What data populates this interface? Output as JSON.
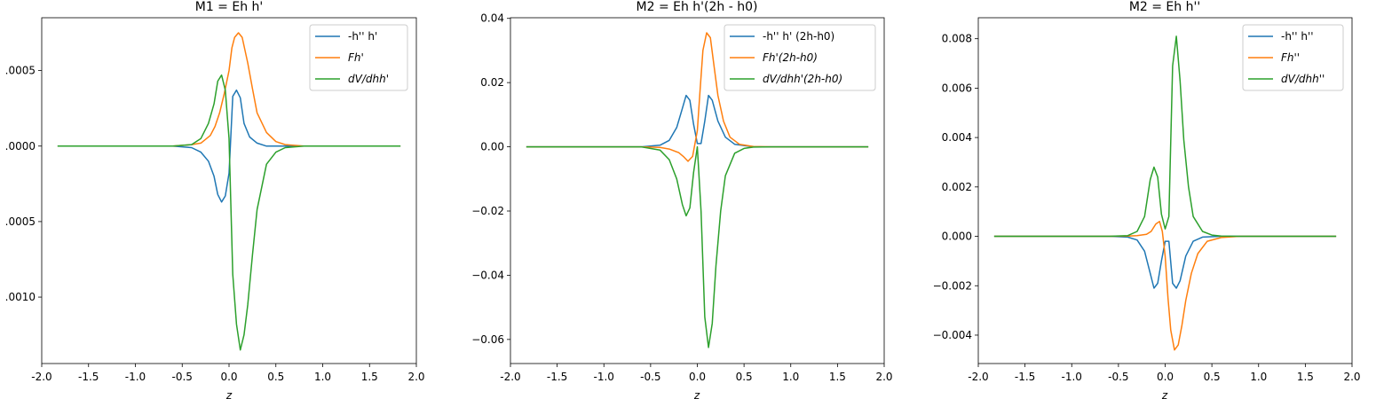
{
  "colors": {
    "blue": "#1f77b4",
    "orange": "#ff7f0e",
    "green": "#2ca02c"
  },
  "chart_data": [
    {
      "type": "line",
      "title": "M1 = Eh h'",
      "xlabel": "z",
      "ylabel": "",
      "xlim": [
        -2.0,
        2.0
      ],
      "ylim": [
        -0.00144,
        0.00085
      ],
      "xticks": [
        "-2.0",
        "-1.5",
        "-1.0",
        "-0.5",
        "0.0",
        "0.5",
        "1.0",
        "1.5",
        "2.0"
      ],
      "yticks": [
        {
          "value": 0.0005,
          "label": ".0005"
        },
        {
          "value": 0.0,
          "label": ".0000"
        },
        {
          "value": -0.0005,
          "label": ".0005"
        },
        {
          "value": -0.001,
          "label": ".0010"
        }
      ],
      "grid": false,
      "legend_position": "upper right",
      "series": [
        {
          "name": "-h'' h'",
          "color": "blue",
          "x": [
            -1.83,
            -0.6,
            -0.4,
            -0.3,
            -0.22,
            -0.16,
            -0.12,
            -0.08,
            -0.04,
            0.0,
            0.04,
            0.08,
            0.12,
            0.16,
            0.22,
            0.3,
            0.4,
            0.6,
            1.83
          ],
          "y": [
            0.0,
            0.0,
            -1e-05,
            -4e-05,
            -0.0001,
            -0.0002,
            -0.00032,
            -0.00037,
            -0.00033,
            -0.00018,
            0.00033,
            0.00037,
            0.00032,
            0.00015,
            6e-05,
            2e-05,
            0.0,
            0.0,
            0.0
          ]
        },
        {
          "name": "Fh'",
          "color": "orange",
          "x": [
            -1.83,
            -0.6,
            -0.4,
            -0.3,
            -0.2,
            -0.15,
            -0.1,
            -0.05,
            0.0,
            0.03,
            0.06,
            0.1,
            0.14,
            0.2,
            0.25,
            0.3,
            0.4,
            0.5,
            0.6,
            0.8,
            1.83
          ],
          "y": [
            0.0,
            0.0,
            1e-05,
            2e-05,
            7e-05,
            0.00013,
            0.00022,
            0.00035,
            0.0005,
            0.00065,
            0.00072,
            0.00075,
            0.00072,
            0.00055,
            0.00038,
            0.00022,
            9e-05,
            3e-05,
            1e-05,
            0.0,
            0.0
          ]
        },
        {
          "name": "dV/dhh'",
          "color": "green",
          "x": [
            -1.83,
            -0.6,
            -0.4,
            -0.3,
            -0.22,
            -0.16,
            -0.12,
            -0.08,
            -0.04,
            0.0,
            0.04,
            0.08,
            0.12,
            0.16,
            0.2,
            0.25,
            0.3,
            0.4,
            0.5,
            0.6,
            0.8,
            1.83
          ],
          "y": [
            0.0,
            0.0,
            1e-05,
            5e-05,
            0.00015,
            0.00028,
            0.00043,
            0.00047,
            0.00037,
            5e-05,
            -0.00085,
            -0.00118,
            -0.00135,
            -0.00125,
            -0.00105,
            -0.00072,
            -0.00042,
            -0.00012,
            -4e-05,
            -1e-05,
            0.0,
            0.0
          ]
        }
      ]
    },
    {
      "type": "line",
      "title": "M2 = Eh h'(2h - h0)",
      "xlabel": "z",
      "ylabel": "",
      "xlim": [
        -2.0,
        2.0
      ],
      "ylim": [
        -0.0675,
        0.0402
      ],
      "xticks": [
        "-2.0",
        "-1.5",
        "-1.0",
        "-0.5",
        "0.0",
        "0.5",
        "1.0",
        "1.5",
        "2.0"
      ],
      "yticks": [
        {
          "value": 0.04,
          "label": "0.04"
        },
        {
          "value": 0.02,
          "label": "0.02"
        },
        {
          "value": 0.0,
          "label": "0.00"
        },
        {
          "value": -0.02,
          "label": "−0.02"
        },
        {
          "value": -0.04,
          "label": "−0.04"
        },
        {
          "value": -0.06,
          "label": "−0.06"
        }
      ],
      "grid": false,
      "legend_position": "upper right",
      "series": [
        {
          "name": "-h'' h' (2h-h0)",
          "color": "blue",
          "x": [
            -1.83,
            -0.6,
            -0.4,
            -0.3,
            -0.22,
            -0.16,
            -0.12,
            -0.08,
            -0.04,
            0.0,
            0.04,
            0.08,
            0.12,
            0.16,
            0.22,
            0.3,
            0.4,
            0.6,
            1.83
          ],
          "y": [
            0.0,
            0.0,
            0.0005,
            0.002,
            0.006,
            0.012,
            0.016,
            0.0145,
            0.007,
            0.001,
            0.001,
            0.008,
            0.016,
            0.0145,
            0.008,
            0.003,
            0.0008,
            0.0,
            0.0
          ]
        },
        {
          "name": "Fh'(2h-h0)",
          "color": "orange",
          "x": [
            -1.83,
            -0.6,
            -0.4,
            -0.3,
            -0.2,
            -0.15,
            -0.1,
            -0.05,
            0.0,
            0.03,
            0.06,
            0.1,
            0.14,
            0.18,
            0.22,
            0.28,
            0.35,
            0.45,
            0.6,
            0.8,
            1.83
          ],
          "y": [
            0.0,
            0.0,
            -0.0002,
            -0.0007,
            -0.0018,
            -0.003,
            -0.0045,
            -0.003,
            0.005,
            0.018,
            0.03,
            0.0355,
            0.034,
            0.025,
            0.016,
            0.008,
            0.003,
            0.0008,
            0.0001,
            0.0,
            0.0
          ]
        },
        {
          "name": "dV/dhh'(2h-h0)",
          "color": "green",
          "x": [
            -1.83,
            -0.6,
            -0.4,
            -0.3,
            -0.22,
            -0.16,
            -0.12,
            -0.08,
            -0.04,
            0.0,
            0.04,
            0.08,
            0.12,
            0.16,
            0.2,
            0.25,
            0.3,
            0.4,
            0.5,
            0.6,
            0.8,
            1.83
          ],
          "y": [
            0.0,
            0.0,
            -0.001,
            -0.004,
            -0.01,
            -0.018,
            -0.0215,
            -0.019,
            -0.008,
            0.0,
            -0.02,
            -0.053,
            -0.0625,
            -0.055,
            -0.037,
            -0.02,
            -0.009,
            -0.002,
            -0.0005,
            -0.0001,
            0.0,
            0.0
          ]
        }
      ]
    },
    {
      "type": "line",
      "title": "M2 = Eh h''",
      "xlabel": "z",
      "ylabel": "",
      "xlim": [
        -2.0,
        2.0
      ],
      "ylim": [
        -0.00515,
        0.00885
      ],
      "xticks": [
        "-2.0",
        "-1.5",
        "-1.0",
        "-0.5",
        "0.0",
        "0.5",
        "1.0",
        "1.5",
        "2.0"
      ],
      "yticks": [
        {
          "value": 0.008,
          "label": "0.008"
        },
        {
          "value": 0.006,
          "label": "0.006"
        },
        {
          "value": 0.004,
          "label": "0.004"
        },
        {
          "value": 0.002,
          "label": "0.002"
        },
        {
          "value": 0.0,
          "label": "0.000"
        },
        {
          "value": -0.002,
          "label": "−0.002"
        },
        {
          "value": -0.004,
          "label": "−0.004"
        }
      ],
      "grid": false,
      "legend_position": "upper right",
      "series": [
        {
          "name": "-h'' h''",
          "color": "blue",
          "x": [
            -1.83,
            -0.6,
            -0.4,
            -0.3,
            -0.22,
            -0.16,
            -0.12,
            -0.08,
            -0.04,
            0.0,
            0.04,
            0.08,
            0.12,
            0.16,
            0.22,
            0.3,
            0.4,
            0.6,
            1.83
          ],
          "y": [
            0.0,
            0.0,
            -3e-05,
            -0.00015,
            -0.0006,
            -0.0015,
            -0.0021,
            -0.0019,
            -0.001,
            -0.0002,
            -0.0002,
            -0.0019,
            -0.0021,
            -0.0018,
            -0.0008,
            -0.0002,
            -3e-05,
            0.0,
            0.0
          ]
        },
        {
          "name": "Fh''",
          "color": "orange",
          "x": [
            -1.83,
            -0.6,
            -0.4,
            -0.3,
            -0.2,
            -0.15,
            -0.1,
            -0.06,
            -0.03,
            0.0,
            0.03,
            0.06,
            0.1,
            0.14,
            0.18,
            0.22,
            0.28,
            0.35,
            0.45,
            0.6,
            0.8,
            1.83
          ],
          "y": [
            0.0,
            0.0,
            1e-05,
            3e-05,
            8e-05,
            0.0002,
            0.0005,
            0.0006,
            0.0002,
            -0.0008,
            -0.0025,
            -0.0038,
            -0.0046,
            -0.0044,
            -0.0036,
            -0.0026,
            -0.0015,
            -0.0007,
            -0.0002,
            -5e-05,
            0.0,
            0.0
          ]
        },
        {
          "name": "dV/dhh''",
          "color": "green",
          "x": [
            -1.83,
            -0.6,
            -0.4,
            -0.3,
            -0.22,
            -0.16,
            -0.12,
            -0.08,
            -0.04,
            0.0,
            0.04,
            0.08,
            0.12,
            0.16,
            0.2,
            0.25,
            0.3,
            0.4,
            0.5,
            0.6,
            0.8,
            1.83
          ],
          "y": [
            0.0,
            0.0,
            3e-05,
            0.0002,
            0.0008,
            0.0023,
            0.0028,
            0.0024,
            0.0009,
            0.0003,
            0.0008,
            0.0069,
            0.0081,
            0.0063,
            0.0039,
            0.002,
            0.0008,
            0.0002,
            5e-05,
            1e-05,
            0.0,
            0.0
          ]
        }
      ]
    }
  ]
}
